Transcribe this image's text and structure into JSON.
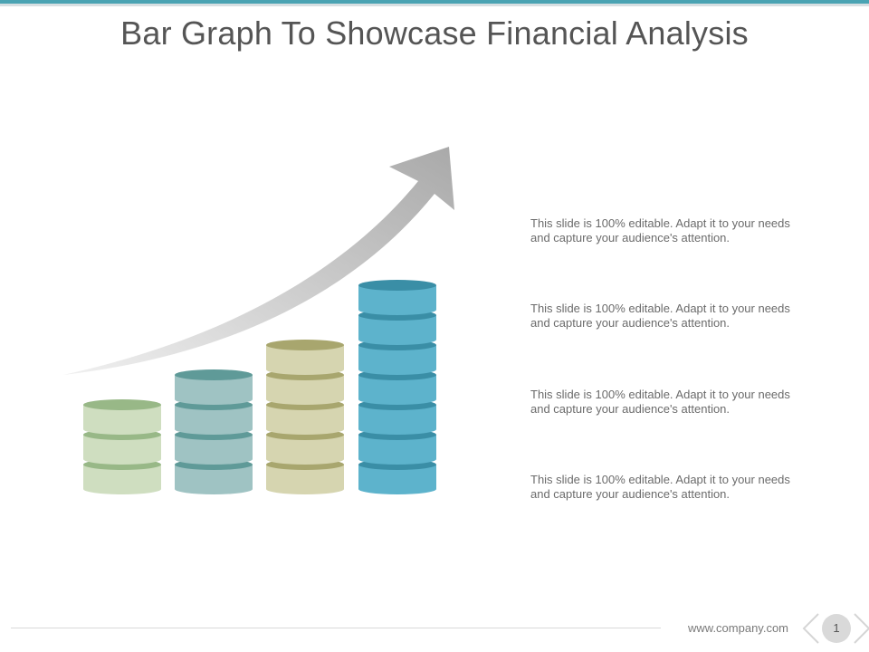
{
  "title": "Bar Graph To Showcase Financial Analysis",
  "descriptions": [
    "This slide is 100% editable. Adapt it to your needs and capture your audience's attention.",
    "This slide is 100% editable. Adapt it to your needs and capture your audience's attention.",
    "This slide is 100% editable. Adapt it to your needs and capture your audience's attention.",
    "This slide is 100% editable. Adapt it to your needs and capture your audience's attention."
  ],
  "stacks": [
    {
      "coins": 3,
      "body_color": "#cfdec0",
      "top_color": "#98b887",
      "band_color": "#98b887"
    },
    {
      "coins": 4,
      "body_color": "#9fc3c3",
      "top_color": "#5f9a98",
      "band_color": "#5f9a98"
    },
    {
      "coins": 5,
      "body_color": "#d6d5b0",
      "top_color": "#a8a66e",
      "band_color": "#a8a66e"
    },
    {
      "coins": 7,
      "body_color": "#5db3cc",
      "top_color": "#3a8ea6",
      "band_color": "#3a8ea6"
    }
  ],
  "arrow_color": "#b8b8b8",
  "footer": {
    "url": "www.company.com",
    "page": "1"
  },
  "icons": [
    "arrow-up-icon",
    "chevron-left-icon",
    "chevron-right-icon"
  ]
}
